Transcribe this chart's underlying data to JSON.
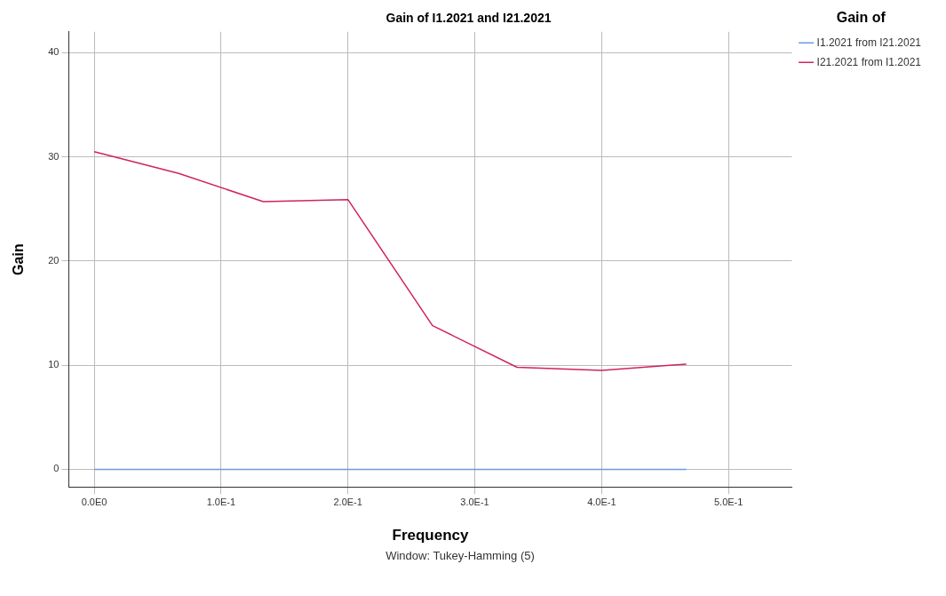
{
  "chart_data": {
    "type": "line",
    "title": "Gain of I1.2021 and I21.2021",
    "xlabel": "Frequency",
    "ylabel": "Gain",
    "legend_title": "Gain of",
    "annotations": [
      "Window: Tukey-Hamming (5)"
    ],
    "x": [
      0,
      0.0667,
      0.1333,
      0.2,
      0.2667,
      0.3333,
      0.4,
      0.4667
    ],
    "series": [
      {
        "name": "I1.2021 from I21.2021",
        "color": "#6b9be0",
        "values": [
          0,
          0,
          0,
          0,
          0,
          0,
          0,
          0
        ]
      },
      {
        "name": "I21.2021 from I1.2021",
        "color": "#d0245a",
        "values": [
          30.5,
          28.4,
          25.7,
          25.9,
          13.8,
          9.8,
          9.5,
          10.1
        ]
      }
    ],
    "xlim": [
      -0.02,
      0.55
    ],
    "xticks": [
      {
        "value": 0,
        "label": "0.0E0"
      },
      {
        "value": 0.1,
        "label": "1.0E-1"
      },
      {
        "value": 0.2,
        "label": "2.0E-1"
      },
      {
        "value": 0.3,
        "label": "3.0E-1"
      },
      {
        "value": 0.4,
        "label": "4.0E-1"
      },
      {
        "value": 0.5,
        "label": "5.0E-1"
      }
    ],
    "ylim": [
      -1.7,
      42
    ],
    "yticks": [
      0,
      10,
      20,
      30,
      40
    ],
    "grid": true,
    "legend": "right",
    "marker": "none",
    "line_style": "solid"
  }
}
